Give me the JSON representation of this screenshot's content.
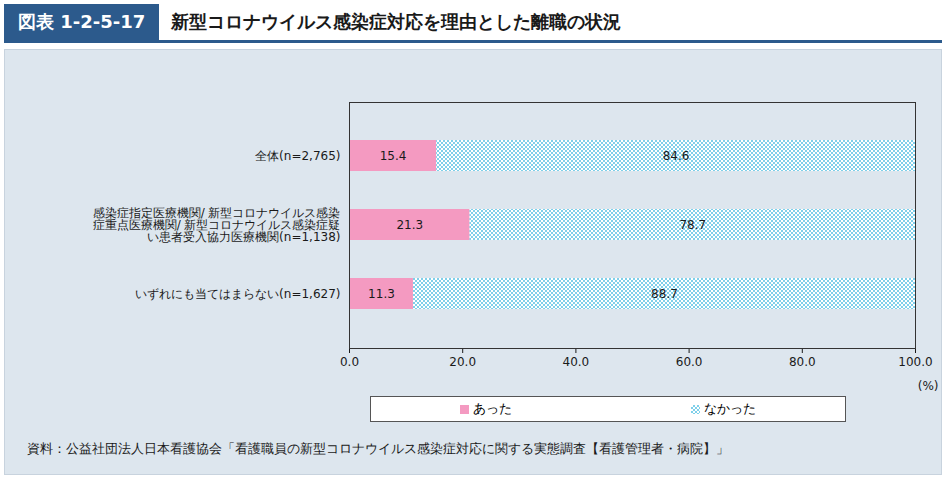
{
  "chart_data": {
    "type": "bar",
    "figure_number": "図表 1-2-5-17",
    "title": "新型コロナウイルス感染症対応を理由とした離職の状況",
    "orientation": "horizontal",
    "stacked": true,
    "data_labels": true,
    "legend": "bottom",
    "categories": [
      "全体(n=2,765)",
      "感染症指定医療機関/ 新型コロナウイルス感染症重点医療機関/ 新型コロナウイルス感染症疑い患者受入協力医療機関(n=1,138)",
      "いずれにも当てはまらない(n=1,627)"
    ],
    "series": [
      {
        "name": "あった",
        "color": "#f49ac1",
        "values": [
          15.4,
          21.3,
          11.3
        ]
      },
      {
        "name": "なかった",
        "color": "#7fd0ea",
        "values": [
          84.6,
          78.7,
          88.7
        ]
      }
    ],
    "x_label": "(%)",
    "xlim": [
      0,
      100
    ],
    "xticks": [
      {
        "value": 0,
        "label": "0.0"
      },
      {
        "value": 20,
        "label": "20.0"
      },
      {
        "value": 40,
        "label": "40.0"
      },
      {
        "value": 60,
        "label": "60.0"
      },
      {
        "value": 80,
        "label": "80.0"
      },
      {
        "value": 100,
        "label": "100.0"
      }
    ],
    "source": "資料：公益社団法人日本看護協会「看護職員の新型コロナウイルス感染症対応に関する実態調査【看護管理者・病院】」"
  }
}
